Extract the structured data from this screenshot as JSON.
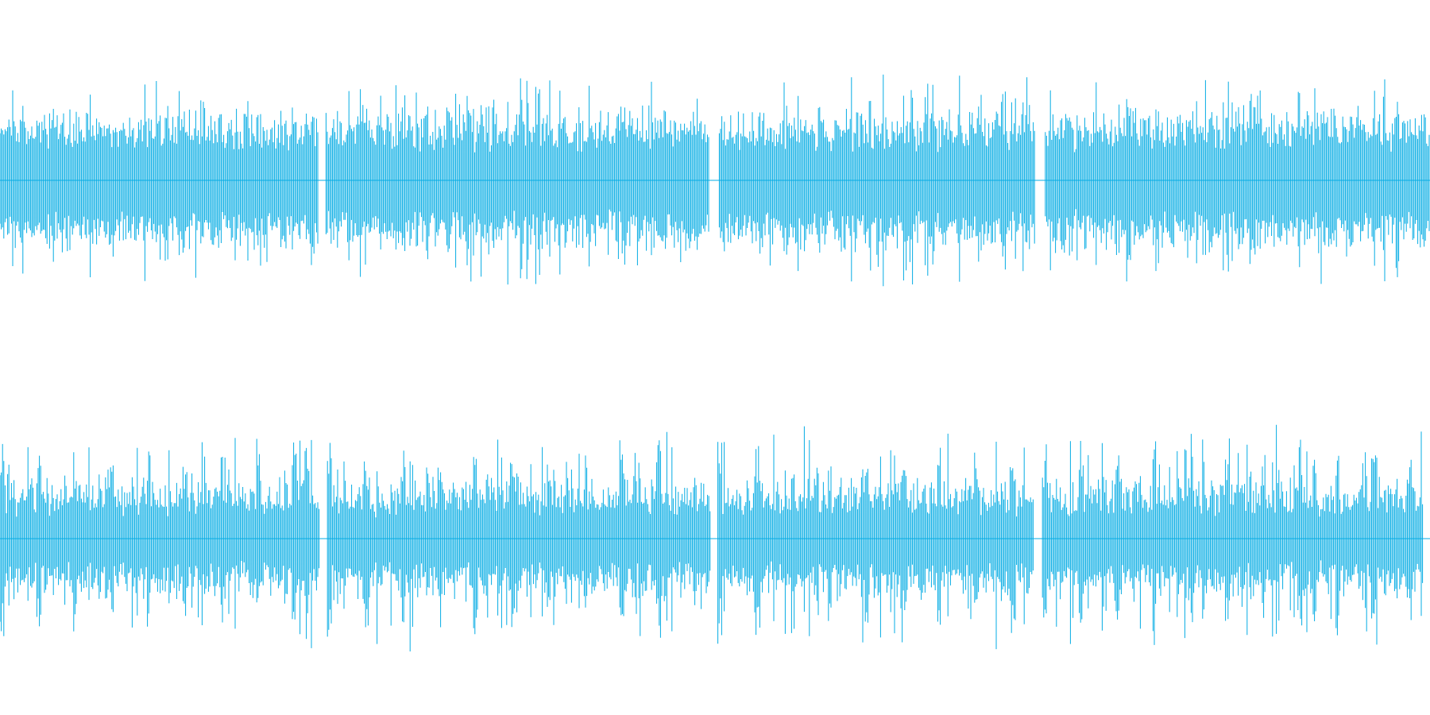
{
  "chart_data": {
    "type": "waveform",
    "title": "",
    "xlabel": "",
    "ylabel": "",
    "grid": false,
    "legend": "none",
    "color": "#06ace4",
    "centerline_color": "#06ace4",
    "channels": [
      {
        "segments": [
          {
            "t_start": 0.0,
            "t_end": 0.223,
            "peak": 0.88
          },
          {
            "t_start": 0.228,
            "t_end": 0.496,
            "peak": 0.95
          },
          {
            "t_start": 0.503,
            "t_end": 0.724,
            "peak": 0.92
          },
          {
            "t_start": 0.731,
            "t_end": 1.0,
            "peak": 0.93
          }
        ],
        "body_level": 0.48,
        "ylim": [
          -1,
          1
        ]
      },
      {
        "segments": [
          {
            "t_start": 0.0,
            "t_end": 0.224,
            "peak": 0.97
          },
          {
            "t_start": 0.229,
            "t_end": 0.497,
            "peak": 0.96
          },
          {
            "t_start": 0.502,
            "t_end": 0.723,
            "peak": 0.97
          },
          {
            "t_start": 0.729,
            "t_end": 0.995,
            "peak": 0.97
          }
        ],
        "body_level": 0.38,
        "ylim": [
          -1,
          1
        ]
      }
    ]
  }
}
